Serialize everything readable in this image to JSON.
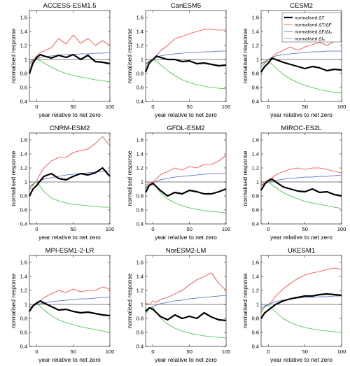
{
  "figure": {
    "xlabel": "year relative to net zero",
    "ylabel": "normalised response"
  },
  "legend": {
    "entries": [
      {
        "label": "normalised ΔT",
        "color": "#000000",
        "width": 2.2
      },
      {
        "label": "normalised ΔT/ΔF",
        "color": "#ff3b3b",
        "width": 0.8
      },
      {
        "label": "normalised ΔF/ΔIₐ",
        "color": "#4a5fc1",
        "width": 0.8
      },
      {
        "label": "normalised ΔIₐ",
        "color": "#3bbf3b",
        "width": 0.8
      }
    ]
  },
  "chart_data": [
    {
      "type": "line",
      "title": "ACCESS-ESM1.5",
      "xlabel": "year relative to net zero",
      "ylabel": "normalised response",
      "xlim": [
        -10,
        100
      ],
      "ylim": [
        0.4,
        1.7
      ],
      "xticks": [
        0,
        50,
        100
      ],
      "yticks": [
        0.4,
        0.6,
        0.8,
        1,
        1.2,
        1.4,
        1.6
      ],
      "reference_line": 1,
      "x": [
        -10,
        -5,
        0,
        5,
        10,
        20,
        30,
        40,
        50,
        60,
        70,
        80,
        90,
        100
      ],
      "series": [
        {
          "name": "normalised ΔT",
          "values": [
            0.8,
            0.95,
            1.03,
            1.07,
            1.05,
            1.02,
            1.06,
            1.03,
            1.07,
            1.0,
            1.06,
            0.97,
            0.96,
            0.94
          ]
        },
        {
          "name": "normalised ΔT/ΔF",
          "values": [
            0.93,
            1.0,
            1.05,
            1.1,
            1.12,
            1.17,
            1.3,
            1.22,
            1.35,
            1.23,
            1.3,
            1.2,
            1.27,
            1.2
          ]
        },
        {
          "name": "normalised ΔF/ΔIₐ",
          "values": [
            0.96,
            0.99,
            1.01,
            1.03,
            1.04,
            1.05,
            1.06,
            1.07,
            1.07,
            1.08,
            1.08,
            1.09,
            1.09,
            1.1
          ]
        },
        {
          "name": "normalised ΔIₐ",
          "values": [
            0.87,
            0.98,
            1.02,
            0.98,
            0.95,
            0.89,
            0.84,
            0.8,
            0.77,
            0.75,
            0.73,
            0.71,
            0.7,
            0.68
          ]
        }
      ]
    },
    {
      "type": "line",
      "title": "CanESM5",
      "xlabel": "year relative to net zero",
      "ylabel": "normalised response",
      "xlim": [
        -10,
        100
      ],
      "ylim": [
        0.4,
        1.7
      ],
      "xticks": [
        0,
        50,
        100
      ],
      "yticks": [
        0.4,
        0.6,
        0.8,
        1,
        1.2,
        1.4,
        1.6
      ],
      "reference_line": 1,
      "x": [
        -10,
        -5,
        0,
        5,
        10,
        20,
        30,
        40,
        50,
        60,
        70,
        80,
        90,
        100
      ],
      "series": [
        {
          "name": "normalised ΔT",
          "values": [
            0.82,
            0.95,
            1.0,
            1.05,
            1.03,
            1.0,
            1.0,
            0.97,
            0.98,
            0.94,
            0.95,
            0.93,
            0.91,
            0.92
          ]
        },
        {
          "name": "normalised ΔT/ΔF",
          "values": [
            0.93,
            0.98,
            1.0,
            1.05,
            1.12,
            1.2,
            1.3,
            1.33,
            1.37,
            1.4,
            1.43,
            1.43,
            1.42,
            1.42
          ]
        },
        {
          "name": "normalised ΔF/ΔIₐ",
          "values": [
            0.94,
            0.98,
            1.0,
            1.03,
            1.05,
            1.07,
            1.08,
            1.09,
            1.1,
            1.1,
            1.11,
            1.11,
            1.12,
            1.12
          ]
        },
        {
          "name": "normalised ΔIₐ",
          "values": [
            0.88,
            0.98,
            1.0,
            0.97,
            0.93,
            0.84,
            0.77,
            0.71,
            0.67,
            0.64,
            0.62,
            0.6,
            0.59,
            0.58
          ]
        }
      ]
    },
    {
      "type": "line",
      "title": "CESM2",
      "xlabel": "year relative to net zero",
      "ylabel": "normalised response",
      "xlim": [
        -10,
        100
      ],
      "ylim": [
        0.4,
        1.7
      ],
      "xticks": [
        0,
        50,
        100
      ],
      "yticks": [
        0.4,
        0.6,
        0.8,
        1,
        1.2,
        1.4,
        1.6
      ],
      "reference_line": 1,
      "x": [
        -10,
        -5,
        0,
        5,
        10,
        20,
        30,
        40,
        50,
        60,
        70,
        80,
        90,
        100
      ],
      "series": [
        {
          "name": "normalised ΔT",
          "values": [
            0.82,
            0.9,
            0.95,
            1.02,
            1.0,
            0.96,
            0.93,
            0.9,
            0.87,
            0.9,
            0.88,
            0.84,
            0.86,
            0.85
          ]
        },
        {
          "name": "normalised ΔT/ΔF",
          "values": [
            0.94,
            0.96,
            1.0,
            1.03,
            1.08,
            1.13,
            1.18,
            1.13,
            1.18,
            1.21,
            1.25,
            1.2,
            1.26,
            1.27
          ]
        },
        {
          "name": "normalised ΔF/ΔIₐ",
          "values": [
            0.94,
            0.97,
            1.0,
            1.03,
            1.05,
            1.07,
            1.08,
            1.09,
            1.1,
            1.11,
            1.11,
            1.12,
            1.12,
            1.12
          ]
        },
        {
          "name": "normalised ΔIₐ",
          "values": [
            0.88,
            0.95,
            0.98,
            0.93,
            0.88,
            0.79,
            0.72,
            0.67,
            0.63,
            0.6,
            0.57,
            0.55,
            0.53,
            0.52
          ]
        }
      ]
    },
    {
      "type": "line",
      "title": "CNRM-ESM2",
      "xlabel": "year relative to net zero",
      "ylabel": "normalised response",
      "xlim": [
        -10,
        100
      ],
      "ylim": [
        0.4,
        1.7
      ],
      "xticks": [
        0,
        50,
        100
      ],
      "yticks": [
        0.4,
        0.6,
        0.8,
        1,
        1.2,
        1.4,
        1.6
      ],
      "reference_line": 1,
      "x": [
        -10,
        -5,
        0,
        5,
        10,
        20,
        30,
        40,
        50,
        60,
        70,
        80,
        90,
        100
      ],
      "series": [
        {
          "name": "normalised ΔT",
          "values": [
            0.8,
            0.9,
            0.95,
            1.02,
            1.08,
            1.12,
            1.05,
            1.03,
            1.08,
            1.12,
            1.1,
            1.13,
            1.2,
            1.08
          ]
        },
        {
          "name": "normalised ΔT/ΔF",
          "values": [
            0.9,
            0.95,
            1.02,
            1.12,
            1.2,
            1.3,
            1.35,
            1.35,
            1.42,
            1.45,
            1.47,
            1.55,
            1.65,
            1.52
          ]
        },
        {
          "name": "normalised ΔF/ΔIₐ",
          "values": [
            0.93,
            0.97,
            1.0,
            1.02,
            1.04,
            1.06,
            1.08,
            1.1,
            1.11,
            1.12,
            1.13,
            1.14,
            1.15,
            1.16
          ]
        },
        {
          "name": "normalised ΔIₐ",
          "values": [
            0.88,
            0.97,
            1.0,
            0.93,
            0.86,
            0.77,
            0.73,
            0.7,
            0.68,
            0.67,
            0.66,
            0.65,
            0.64,
            0.64
          ]
        }
      ]
    },
    {
      "type": "line",
      "title": "GFDL-ESM2",
      "xlabel": "year relative to net zero",
      "ylabel": "normalised response",
      "xlim": [
        -10,
        100
      ],
      "ylim": [
        0.4,
        1.7
      ],
      "xticks": [
        0,
        50,
        100
      ],
      "yticks": [
        0.4,
        0.6,
        0.8,
        1,
        1.2,
        1.4,
        1.6
      ],
      "reference_line": 1,
      "x": [
        -10,
        -5,
        0,
        5,
        10,
        20,
        30,
        40,
        50,
        60,
        70,
        80,
        90,
        100
      ],
      "series": [
        {
          "name": "normalised ΔT",
          "values": [
            0.85,
            0.95,
            0.98,
            0.93,
            0.88,
            0.8,
            0.85,
            0.83,
            0.88,
            0.86,
            0.83,
            0.83,
            0.86,
            0.9
          ]
        },
        {
          "name": "normalised ΔT/ΔF",
          "values": [
            0.95,
            0.98,
            1.0,
            1.05,
            1.1,
            1.15,
            1.2,
            1.17,
            1.22,
            1.2,
            1.25,
            1.25,
            1.3,
            1.38
          ]
        },
        {
          "name": "normalised ΔF/ΔIₐ",
          "values": [
            0.92,
            0.96,
            0.99,
            1.01,
            1.03,
            1.05,
            1.07,
            1.08,
            1.09,
            1.1,
            1.11,
            1.12,
            1.12,
            1.13
          ]
        },
        {
          "name": "normalised ΔIₐ",
          "values": [
            0.9,
            0.96,
            0.98,
            0.92,
            0.85,
            0.76,
            0.7,
            0.66,
            0.63,
            0.61,
            0.59,
            0.58,
            0.57,
            0.56
          ]
        }
      ]
    },
    {
      "type": "line",
      "title": "MIROC-ES2L",
      "xlabel": "year relative to net zero",
      "ylabel": "normalised response",
      "xlim": [
        -10,
        100
      ],
      "ylim": [
        0.4,
        1.7
      ],
      "xticks": [
        0,
        50,
        100
      ],
      "yticks": [
        0.4,
        0.6,
        0.8,
        1,
        1.2,
        1.4,
        1.6
      ],
      "reference_line": 1,
      "x": [
        -10,
        -5,
        0,
        5,
        10,
        20,
        30,
        40,
        50,
        60,
        70,
        80,
        90,
        100
      ],
      "series": [
        {
          "name": "normalised ΔT",
          "values": [
            0.88,
            0.97,
            1.02,
            1.04,
            1.0,
            0.93,
            0.9,
            0.87,
            0.86,
            0.9,
            0.85,
            0.86,
            0.82,
            0.8
          ]
        },
        {
          "name": "normalised ΔT/ΔF",
          "values": [
            0.95,
            1.0,
            1.03,
            1.06,
            1.1,
            1.15,
            1.18,
            1.2,
            1.18,
            1.2,
            1.2,
            1.18,
            1.15,
            1.13
          ]
        },
        {
          "name": "normalised ΔF/ΔIₐ",
          "values": [
            0.95,
            0.98,
            1.0,
            1.01,
            1.02,
            1.04,
            1.05,
            1.06,
            1.07,
            1.07,
            1.08,
            1.08,
            1.09,
            1.1
          ]
        },
        {
          "name": "normalised ΔIₐ",
          "values": [
            0.9,
            0.97,
            1.0,
            0.96,
            0.92,
            0.85,
            0.8,
            0.76,
            0.72,
            0.7,
            0.68,
            0.66,
            0.64,
            0.62
          ]
        }
      ]
    },
    {
      "type": "line",
      "title": "MPI-ESM1-2-LR",
      "xlabel": "year relative to net zero",
      "ylabel": "normalised response",
      "xlim": [
        -10,
        100
      ],
      "ylim": [
        0.4,
        1.7
      ],
      "xticks": [
        0,
        50,
        100
      ],
      "yticks": [
        0.4,
        0.6,
        0.8,
        1,
        1.2,
        1.4,
        1.6
      ],
      "reference_line": 1,
      "x": [
        -10,
        -5,
        0,
        5,
        10,
        20,
        30,
        40,
        50,
        60,
        70,
        80,
        90,
        100
      ],
      "series": [
        {
          "name": "normalised ΔT",
          "values": [
            0.9,
            0.98,
            1.02,
            1.05,
            1.02,
            0.97,
            0.92,
            0.93,
            0.9,
            0.88,
            0.89,
            0.87,
            0.85,
            0.84
          ]
        },
        {
          "name": "normalised ΔT/ΔF",
          "values": [
            0.95,
            0.98,
            1.0,
            1.05,
            1.1,
            1.15,
            1.2,
            1.17,
            1.22,
            1.18,
            1.2,
            1.2,
            1.25,
            1.22
          ]
        },
        {
          "name": "normalised ΔF/ΔIₐ",
          "values": [
            0.96,
            0.98,
            1.0,
            1.01,
            1.02,
            1.04,
            1.05,
            1.06,
            1.07,
            1.08,
            1.08,
            1.09,
            1.1,
            1.1
          ]
        },
        {
          "name": "normalised ΔIₐ",
          "values": [
            0.9,
            0.99,
            1.03,
            0.97,
            0.92,
            0.84,
            0.78,
            0.74,
            0.71,
            0.68,
            0.66,
            0.64,
            0.62,
            0.6
          ]
        }
      ]
    },
    {
      "type": "line",
      "title": "NorESM2-LM",
      "xlabel": "year relative to net zero",
      "ylabel": "normalised response",
      "xlim": [
        -10,
        100
      ],
      "ylim": [
        0.4,
        1.7
      ],
      "xticks": [
        0,
        50,
        100
      ],
      "yticks": [
        0.4,
        0.6,
        0.8,
        1,
        1.2,
        1.4,
        1.6
      ],
      "reference_line": 1,
      "x": [
        -10,
        -5,
        0,
        5,
        10,
        20,
        30,
        40,
        50,
        60,
        70,
        80,
        90,
        100
      ],
      "series": [
        {
          "name": "normalised ΔT",
          "values": [
            0.9,
            0.95,
            0.93,
            0.88,
            0.83,
            0.78,
            0.85,
            0.8,
            0.83,
            0.8,
            0.88,
            0.82,
            0.78,
            0.77
          ]
        },
        {
          "name": "normalised ΔT/ΔF",
          "values": [
            1.02,
            1.0,
            1.05,
            1.03,
            1.07,
            1.1,
            1.15,
            1.2,
            1.28,
            1.35,
            1.4,
            1.45,
            1.3,
            1.2
          ]
        },
        {
          "name": "normalised ΔF/ΔIₐ",
          "values": [
            0.92,
            0.95,
            0.97,
            0.99,
            1.01,
            1.03,
            1.05,
            1.06,
            1.08,
            1.09,
            1.1,
            1.11,
            1.12,
            1.13
          ]
        },
        {
          "name": "normalised ΔIₐ",
          "values": [
            0.86,
            0.94,
            0.96,
            0.88,
            0.81,
            0.72,
            0.66,
            0.62,
            0.59,
            0.57,
            0.55,
            0.54,
            0.53,
            0.52
          ]
        }
      ]
    },
    {
      "type": "line",
      "title": "UKESM1",
      "xlabel": "year relative to net zero",
      "ylabel": "normalised response",
      "xlim": [
        -10,
        100
      ],
      "ylim": [
        0.4,
        1.7
      ],
      "xticks": [
        0,
        50,
        100
      ],
      "yticks": [
        0.4,
        0.6,
        0.8,
        1,
        1.2,
        1.4,
        1.6
      ],
      "reference_line": 1,
      "x": [
        -10,
        -5,
        0,
        5,
        10,
        20,
        30,
        40,
        50,
        60,
        70,
        80,
        90,
        100
      ],
      "series": [
        {
          "name": "normalised ΔT",
          "values": [
            0.8,
            0.88,
            0.92,
            0.96,
            1.0,
            1.05,
            1.08,
            1.1,
            1.12,
            1.12,
            1.14,
            1.15,
            1.14,
            1.13
          ]
        },
        {
          "name": "normalised ΔT/ΔF",
          "values": [
            0.92,
            0.96,
            1.0,
            1.05,
            1.12,
            1.22,
            1.3,
            1.37,
            1.42,
            1.45,
            1.47,
            1.5,
            1.52,
            1.5
          ]
        },
        {
          "name": "normalised ΔF/ΔIₐ",
          "values": [
            0.95,
            0.98,
            1.0,
            1.02,
            1.04,
            1.06,
            1.08,
            1.09,
            1.1,
            1.1,
            1.11,
            1.11,
            1.12,
            1.12
          ]
        },
        {
          "name": "normalised ΔIₐ",
          "values": [
            0.88,
            0.97,
            0.99,
            0.94,
            0.89,
            0.8,
            0.74,
            0.7,
            0.67,
            0.65,
            0.63,
            0.62,
            0.61,
            0.6
          ]
        }
      ]
    }
  ]
}
